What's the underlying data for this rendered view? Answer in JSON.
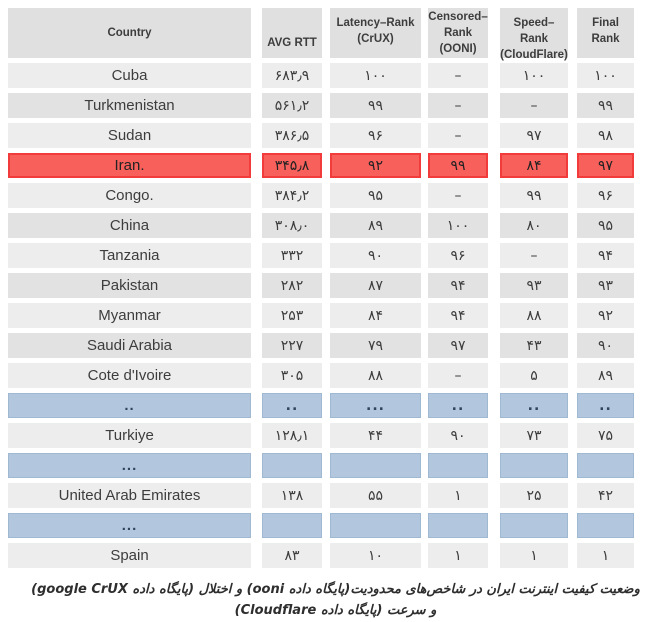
{
  "colors": {
    "header_bg": "#e0e0e0",
    "row_light": "#ededed",
    "row_dark": "#e2e2e2",
    "row_highlight": "#f8605c",
    "row_highlight_border": "#f23c3c",
    "row_separator": "#b2c7dd",
    "row_separator_border": "#9fb9d3",
    "text": "#3d3d3d"
  },
  "table": {
    "columns": [
      {
        "key": "country",
        "label": "Country"
      },
      {
        "key": "avg_rtt",
        "label": "AVG RTT"
      },
      {
        "key": "latency_rank",
        "label": "Latency–Rank\n(CrUX)"
      },
      {
        "key": "censored_rank",
        "label": "Censored–\nRank\n(OONI)"
      },
      {
        "key": "speed_rank",
        "label": "Speed–Rank\n(CloudFlare)"
      },
      {
        "key": "final_rank",
        "label": "Final Rank"
      }
    ],
    "rows": [
      {
        "variant": "light",
        "country": "Cuba",
        "avg_rtt": "۶۸۳٫۹",
        "latency_rank": "۱۰۰",
        "censored_rank": "–",
        "speed_rank": "۱۰۰",
        "final_rank": "۱۰۰"
      },
      {
        "variant": "dark",
        "country": "Turkmenistan",
        "avg_rtt": "۵۶۱٫۲",
        "latency_rank": "۹۹",
        "censored_rank": "–",
        "speed_rank": "–",
        "final_rank": "۹۹"
      },
      {
        "variant": "light",
        "country": "Sudan",
        "avg_rtt": "۳۸۶٫۵",
        "latency_rank": "۹۶",
        "censored_rank": "–",
        "speed_rank": "۹۷",
        "final_rank": "۹۸"
      },
      {
        "variant": "highlight",
        "country": "Iran.",
        "avg_rtt": "۳۴۵٫۸",
        "latency_rank": "۹۲",
        "censored_rank": "۹۹",
        "speed_rank": "۸۴",
        "final_rank": "۹۷"
      },
      {
        "variant": "light",
        "country": "Congo.",
        "avg_rtt": "۳۸۴٫۲",
        "latency_rank": "۹۵",
        "censored_rank": "–",
        "speed_rank": "۹۹",
        "final_rank": "۹۶"
      },
      {
        "variant": "dark",
        "country": "China",
        "avg_rtt": "۳۰۸٫۰",
        "latency_rank": "۸۹",
        "censored_rank": "۱۰۰",
        "speed_rank": "۸۰",
        "final_rank": "۹۵"
      },
      {
        "variant": "light",
        "country": "Tanzania",
        "avg_rtt": "۳۳۲",
        "latency_rank": "۹۰",
        "censored_rank": "۹۶",
        "speed_rank": "–",
        "final_rank": "۹۴"
      },
      {
        "variant": "dark",
        "country": "Pakistan",
        "avg_rtt": "۲۸۲",
        "latency_rank": "۸۷",
        "censored_rank": "۹۴",
        "speed_rank": "۹۳",
        "final_rank": "۹۳"
      },
      {
        "variant": "light",
        "country": "Myanmar",
        "avg_rtt": "۲۵۳",
        "latency_rank": "۸۴",
        "censored_rank": "۹۴",
        "speed_rank": "۸۸",
        "final_rank": "۹۲"
      },
      {
        "variant": "dark",
        "country": "Saudi Arabia",
        "avg_rtt": "۲۲۷",
        "latency_rank": "۷۹",
        "censored_rank": "۹۷",
        "speed_rank": "۴۳",
        "final_rank": "۹۰"
      },
      {
        "variant": "light",
        "country": "Cote d'Ivoire",
        "avg_rtt": "۳۰۵",
        "latency_rank": "۸۸",
        "censored_rank": "–",
        "speed_rank": "۵",
        "final_rank": "۸۹"
      },
      {
        "variant": "separator",
        "country": "..",
        "avg_rtt": "..",
        "latency_rank": "...",
        "censored_rank": "..",
        "speed_rank": "..",
        "final_rank": ".."
      },
      {
        "variant": "light",
        "country": "Turkiye",
        "avg_rtt": "۱۲۸٫۱",
        "latency_rank": "۴۴",
        "censored_rank": "۹۰",
        "speed_rank": "۷۳",
        "final_rank": "۷۵"
      },
      {
        "variant": "separator",
        "country": "...",
        "avg_rtt": "",
        "latency_rank": "",
        "censored_rank": "",
        "speed_rank": "",
        "final_rank": ""
      },
      {
        "variant": "light",
        "country": "United Arab Emirates",
        "avg_rtt": "۱۳۸",
        "latency_rank": "۵۵",
        "censored_rank": "۱",
        "speed_rank": "۲۵",
        "final_rank": "۴۲"
      },
      {
        "variant": "separator",
        "country": "...",
        "avg_rtt": "",
        "latency_rank": "",
        "censored_rank": "",
        "speed_rank": "",
        "final_rank": ""
      },
      {
        "variant": "light",
        "country": "Spain",
        "avg_rtt": "۸۳",
        "latency_rank": "۱۰",
        "censored_rank": "۱",
        "speed_rank": "۱",
        "final_rank": "۱"
      }
    ],
    "highlighted_row": "Iran."
  },
  "caption": {
    "line1": "وضعیت کیفیت اینترنت ایران در شاخص‌های محدودیت(پایگاه داده ooni) و اختلال (پایگاه داده google CrUX)",
    "line2": "و سرعت (پایگاه داده Cloudflare)"
  },
  "chart_data": {
    "type": "table",
    "title": "Iran internet quality ranking vs other countries (latency, censorship, speed)",
    "columns": [
      "Country",
      "AVG RTT",
      "Latency–Rank (CrUX)",
      "Censored–Rank (OONI)",
      "Speed–Rank (CloudFlare)",
      "Final Rank"
    ],
    "rows": [
      [
        "Cuba",
        683.9,
        100,
        null,
        100,
        100
      ],
      [
        "Turkmenistan",
        561.2,
        99,
        null,
        null,
        99
      ],
      [
        "Sudan",
        386.5,
        96,
        null,
        97,
        98
      ],
      [
        "Iran.",
        345.8,
        92,
        99,
        84,
        97
      ],
      [
        "Congo.",
        384.2,
        95,
        null,
        99,
        96
      ],
      [
        "China",
        308.0,
        89,
        100,
        80,
        95
      ],
      [
        "Tanzania",
        332,
        90,
        96,
        null,
        94
      ],
      [
        "Pakistan",
        282,
        87,
        94,
        93,
        93
      ],
      [
        "Myanmar",
        253,
        84,
        94,
        88,
        92
      ],
      [
        "Saudi Arabia",
        227,
        79,
        97,
        43,
        90
      ],
      [
        "Cote d'Ivoire",
        305,
        88,
        null,
        5,
        89
      ],
      [
        "Turkiye",
        128.1,
        44,
        90,
        73,
        75
      ],
      [
        "United Arab Emirates",
        138,
        55,
        1,
        25,
        42
      ],
      [
        "Spain",
        83,
        10,
        1,
        1,
        1
      ]
    ],
    "highlighted_row": "Iran.",
    "number_script": "persian-digits"
  }
}
